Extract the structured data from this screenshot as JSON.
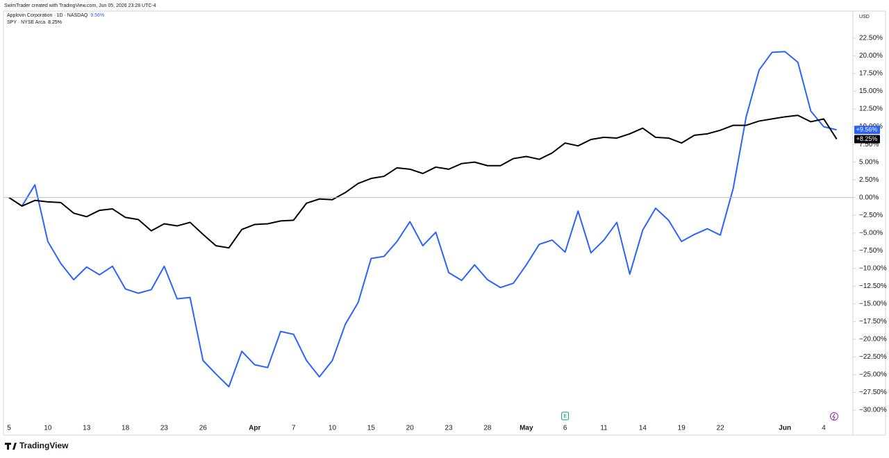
{
  "chart_data": {
    "type": "line",
    "title": "SwimTrader created with TradingView.com, Jun 05, 2026 23:28 UTC-4",
    "currency": "USD",
    "brand": "TradingView",
    "earnings_marker": "E",
    "earnings_index": 43,
    "categories": [
      "5",
      null,
      null,
      "10",
      null,
      null,
      "13",
      null,
      null,
      "18",
      null,
      null,
      "23",
      null,
      null,
      "26",
      null,
      null,
      null,
      "Apr",
      null,
      null,
      "7",
      null,
      null,
      "10",
      null,
      null,
      "15",
      null,
      null,
      "20",
      null,
      null,
      "23",
      null,
      null,
      "28",
      null,
      null,
      "May",
      null,
      null,
      "6",
      null,
      null,
      "11",
      null,
      null,
      "14",
      null,
      null,
      "19",
      null,
      null,
      "22",
      null,
      null,
      null,
      null,
      "Jun",
      null,
      null,
      "4",
      null
    ],
    "series": [
      {
        "name": "Applovin Corporation · 1D · NASDAQ",
        "legend_value": "9.56%",
        "last_label": "+9.56%",
        "color": "#2962ff",
        "values": [
          0,
          -1.2,
          1.8,
          -6.2,
          -9.3,
          -11.6,
          -9.8,
          -10.9,
          -9.7,
          -12.9,
          -13.5,
          -13.0,
          -9.7,
          -14.3,
          -14.1,
          -23.0,
          -24.9,
          -26.7,
          -21.7,
          -23.6,
          -24.0,
          -18.9,
          -19.3,
          -23.0,
          -25.3,
          -23.0,
          -17.9,
          -14.8,
          -8.6,
          -8.3,
          -6.2,
          -3.4,
          -6.8,
          -4.9,
          -10.6,
          -11.7,
          -9.5,
          -11.6,
          -12.7,
          -12.1,
          -9.5,
          -6.6,
          -6.0,
          -7.7,
          -1.9,
          -7.8,
          -6.0,
          -3.5,
          -10.8,
          -4.6,
          -1.5,
          -3.2,
          -6.2,
          -5.2,
          -4.4,
          -5.3,
          1.3,
          11.4,
          18.0,
          20.5,
          20.6,
          19.1,
          12.2,
          10.0,
          9.56
        ]
      },
      {
        "name": "SPY · NYSE Arca",
        "legend_value": "8.25%",
        "last_label": "+8.25%",
        "color": "#000000",
        "values": [
          0,
          -1.2,
          -0.4,
          -0.6,
          -0.7,
          -2.2,
          -2.7,
          -1.8,
          -1.6,
          -2.8,
          -3.1,
          -4.7,
          -3.7,
          -4.0,
          -3.5,
          -5.2,
          -6.8,
          -7.1,
          -4.5,
          -3.8,
          -3.7,
          -3.3,
          -3.2,
          -0.8,
          -0.2,
          -0.3,
          0.7,
          2.0,
          2.7,
          3.0,
          4.2,
          4.0,
          3.4,
          4.3,
          4.0,
          4.8,
          5.0,
          4.5,
          4.5,
          5.5,
          5.8,
          5.4,
          6.3,
          7.7,
          7.3,
          8.2,
          8.5,
          8.4,
          9.0,
          9.8,
          8.5,
          8.4,
          7.7,
          8.8,
          9.0,
          9.5,
          10.2,
          10.2,
          10.8,
          11.1,
          11.4,
          11.6,
          10.7,
          11.1,
          8.25
        ]
      }
    ],
    "ylim": [
      -33.53,
      26.32
    ],
    "yticks": [
      {
        "value": 22.5,
        "label": "22.50%"
      },
      {
        "value": 20,
        "label": "20.00%"
      },
      {
        "value": 17.5,
        "label": "17.50%"
      },
      {
        "value": 15,
        "label": "15.00%"
      },
      {
        "value": 12.5,
        "label": "12.50%"
      },
      {
        "value": 10,
        "label": "10.00%"
      },
      {
        "value": 7.5,
        "label": "7.50%"
      },
      {
        "value": 5,
        "label": "5.00%"
      },
      {
        "value": 2.5,
        "label": "2.50%"
      },
      {
        "value": 0,
        "label": "0.00%"
      },
      {
        "value": -2.5,
        "label": "−2.50%"
      },
      {
        "value": -5,
        "label": "−5.00%"
      },
      {
        "value": -7.5,
        "label": "−7.50%"
      },
      {
        "value": -10,
        "label": "−10.00%"
      },
      {
        "value": -12.5,
        "label": "−12.50%"
      },
      {
        "value": -15,
        "label": "−15.00%"
      },
      {
        "value": -17.5,
        "label": "−17.50%"
      },
      {
        "value": -20,
        "label": "−20.00%"
      },
      {
        "value": -22.5,
        "label": "−22.50%"
      },
      {
        "value": -25,
        "label": "−25.00%"
      },
      {
        "value": -27.5,
        "label": "−27.50%"
      },
      {
        "value": -30,
        "label": "−30.00%"
      }
    ],
    "zero_line": 0
  }
}
